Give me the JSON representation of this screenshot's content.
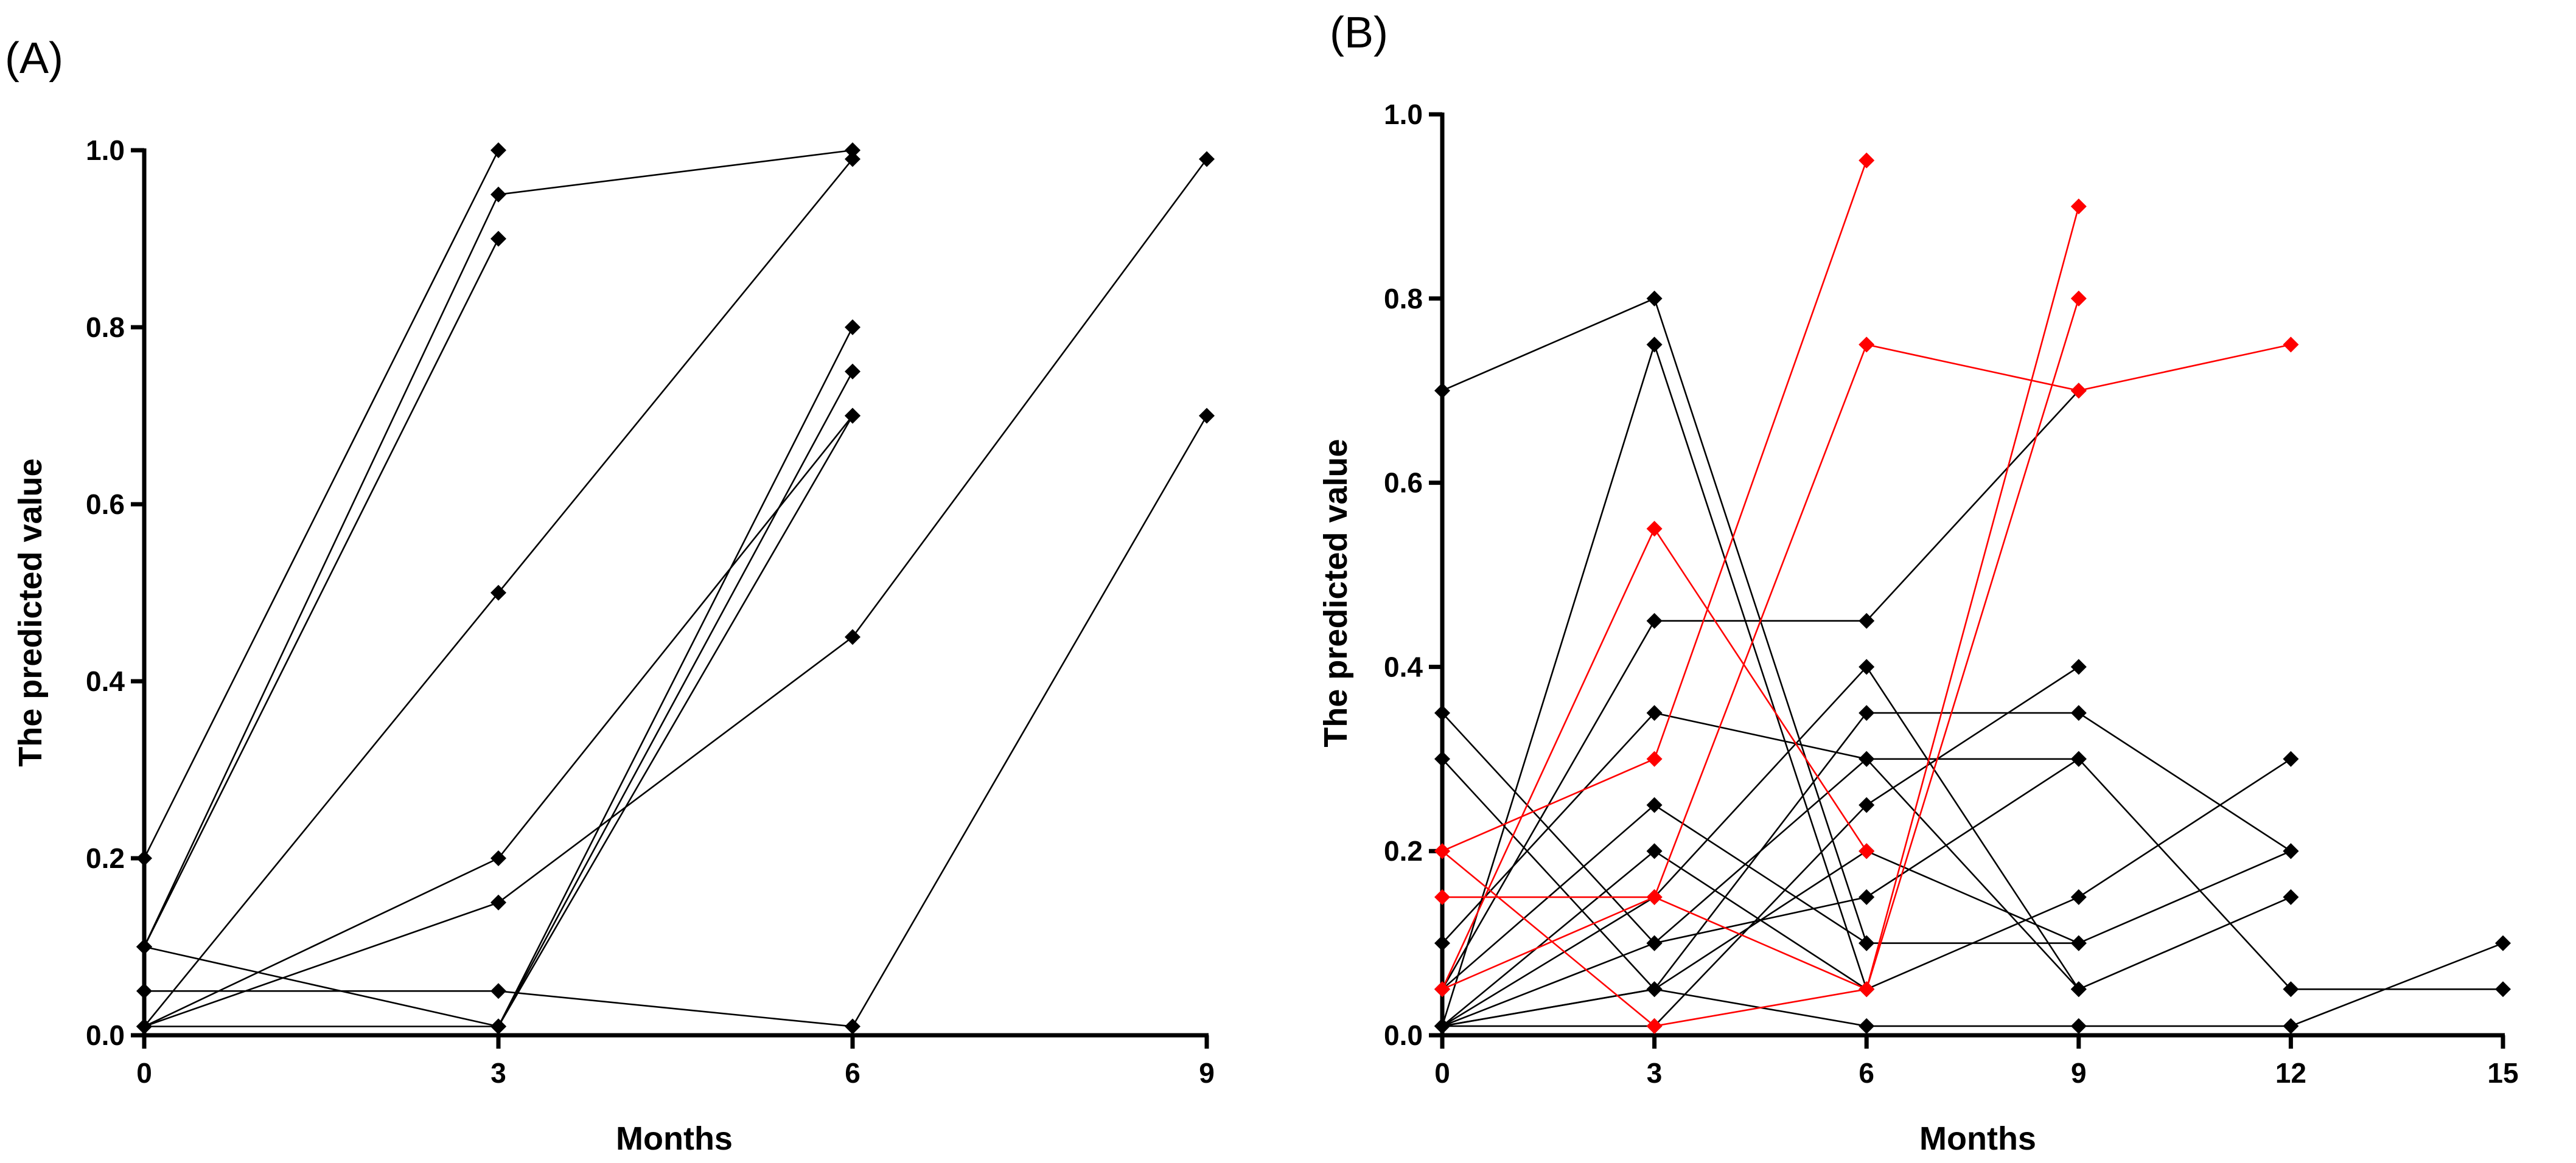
{
  "chart_data": [
    {
      "panel": "(A)",
      "type": "line",
      "xlabel": "Months",
      "ylabel": "The predicted value",
      "xlim": [
        0,
        9
      ],
      "ylim": [
        0,
        1.0
      ],
      "xticks": [
        "0",
        "3",
        "6",
        "9"
      ],
      "yticks": [
        "0.0",
        "0.2",
        "0.4",
        "0.6",
        "0.8",
        "1.0"
      ],
      "marker": "diamond",
      "series": [
        {
          "color": "#000000",
          "points": [
            [
              0,
              0.2
            ],
            [
              3,
              1.0
            ]
          ]
        },
        {
          "color": "#000000",
          "points": [
            [
              0,
              0.1
            ],
            [
              3,
              0.95
            ],
            [
              6,
              1.0
            ]
          ]
        },
        {
          "color": "#000000",
          "points": [
            [
              0,
              0.1
            ],
            [
              3,
              0.9
            ]
          ]
        },
        {
          "color": "#000000",
          "points": [
            [
              0,
              0.01
            ],
            [
              3,
              0.5
            ],
            [
              6,
              0.99
            ]
          ]
        },
        {
          "color": "#000000",
          "points": [
            [
              0,
              0.01
            ],
            [
              3,
              0.2
            ],
            [
              6,
              0.7
            ]
          ]
        },
        {
          "color": "#000000",
          "points": [
            [
              0,
              0.01
            ],
            [
              3,
              0.15
            ],
            [
              6,
              0.45
            ],
            [
              9,
              0.99
            ]
          ]
        },
        {
          "color": "#000000",
          "points": [
            [
              0,
              0.05
            ],
            [
              3,
              0.05
            ],
            [
              6,
              0.01
            ],
            [
              9,
              0.7
            ]
          ]
        },
        {
          "color": "#000000",
          "points": [
            [
              0,
              0.1
            ],
            [
              3,
              0.01
            ],
            [
              6,
              0.8
            ]
          ]
        },
        {
          "color": "#000000",
          "points": [
            [
              0,
              0.01
            ],
            [
              3,
              0.01
            ],
            [
              6,
              0.75
            ]
          ]
        },
        {
          "color": "#000000",
          "points": [
            [
              3,
              0.01
            ],
            [
              6,
              0.7
            ]
          ]
        }
      ]
    },
    {
      "panel": "(B)",
      "type": "line",
      "xlabel": "Months",
      "ylabel": "The predicted value",
      "xlim": [
        0,
        15
      ],
      "ylim": [
        0,
        1.0
      ],
      "xticks": [
        "0",
        "3",
        "6",
        "9",
        "12",
        "15"
      ],
      "yticks": [
        "0.0",
        "0.2",
        "0.4",
        "0.6",
        "0.8",
        "1.0"
      ],
      "marker": "diamond",
      "series": [
        {
          "color": "#000000",
          "points": [
            [
              0,
              0.7
            ],
            [
              3,
              0.8
            ],
            [
              6,
              0.1
            ]
          ]
        },
        {
          "color": "#000000",
          "points": [
            [
              0,
              0.01
            ],
            [
              3,
              0.75
            ],
            [
              6,
              0.05
            ]
          ]
        },
        {
          "color": "#000000",
          "points": [
            [
              0,
              0.05
            ],
            [
              3,
              0.45
            ],
            [
              6,
              0.45
            ],
            [
              9,
              0.7
            ]
          ]
        },
        {
          "color": "#000000",
          "points": [
            [
              0,
              0.35
            ],
            [
              3,
              0.1
            ],
            [
              6,
              0.3
            ],
            [
              9,
              0.3
            ],
            [
              12,
              0.05
            ],
            [
              15,
              0.05
            ]
          ]
        },
        {
          "color": "#000000",
          "points": [
            [
              0,
              0.3
            ],
            [
              3,
              0.05
            ],
            [
              6,
              0.01
            ],
            [
              9,
              0.01
            ],
            [
              12,
              0.01
            ],
            [
              15,
              0.1
            ]
          ]
        },
        {
          "color": "#000000",
          "points": [
            [
              0,
              0.1
            ],
            [
              3,
              0.35
            ],
            [
              6,
              0.3
            ],
            [
              9,
              0.05
            ]
          ]
        },
        {
          "color": "#000000",
          "points": [
            [
              0,
              0.05
            ],
            [
              3,
              0.25
            ],
            [
              6,
              0.1
            ],
            [
              9,
              0.1
            ],
            [
              12,
              0.2
            ]
          ]
        },
        {
          "color": "#000000",
          "points": [
            [
              0,
              0.01
            ],
            [
              3,
              0.2
            ],
            [
              6,
              0.05
            ],
            [
              9,
              0.15
            ],
            [
              12,
              0.3
            ]
          ]
        },
        {
          "color": "#000000",
          "points": [
            [
              0,
              0.01
            ],
            [
              3,
              0.15
            ],
            [
              6,
              0.4
            ],
            [
              9,
              0.05
            ],
            [
              12,
              0.15
            ]
          ]
        },
        {
          "color": "#000000",
          "points": [
            [
              0,
              0.01
            ],
            [
              3,
              0.05
            ],
            [
              6,
              0.35
            ],
            [
              9,
              0.35
            ],
            [
              12,
              0.2
            ]
          ]
        },
        {
          "color": "#000000",
          "points": [
            [
              0,
              0.01
            ],
            [
              3,
              0.01
            ],
            [
              6,
              0.25
            ],
            [
              9,
              0.4
            ]
          ]
        },
        {
          "color": "#000000",
          "points": [
            [
              0,
              0.01
            ],
            [
              3,
              0.1
            ],
            [
              6,
              0.15
            ],
            [
              9,
              0.3
            ]
          ]
        },
        {
          "color": "#000000",
          "points": [
            [
              0,
              0.01
            ],
            [
              3,
              0.05
            ],
            [
              6,
              0.2
            ],
            [
              9,
              0.1
            ]
          ]
        },
        {
          "color": "#ff0000",
          "points": [
            [
              0,
              0.2
            ],
            [
              3,
              0.3
            ],
            [
              6,
              0.95
            ]
          ]
        },
        {
          "color": "#ff0000",
          "points": [
            [
              0,
              0.05
            ],
            [
              3,
              0.55
            ],
            [
              6,
              0.2
            ]
          ]
        },
        {
          "color": "#ff0000",
          "points": [
            [
              0,
              0.15
            ],
            [
              3,
              0.15
            ],
            [
              6,
              0.05
            ],
            [
              9,
              0.9
            ]
          ]
        },
        {
          "color": "#ff0000",
          "points": [
            [
              0,
              0.05
            ],
            [
              3,
              0.15
            ],
            [
              6,
              0.75
            ],
            [
              9,
              0.7
            ],
            [
              12,
              0.75
            ]
          ]
        },
        {
          "color": "#ff0000",
          "points": [
            [
              0,
              0.2
            ],
            [
              3,
              0.01
            ],
            [
              6,
              0.05
            ],
            [
              9,
              0.8
            ]
          ]
        }
      ]
    }
  ]
}
